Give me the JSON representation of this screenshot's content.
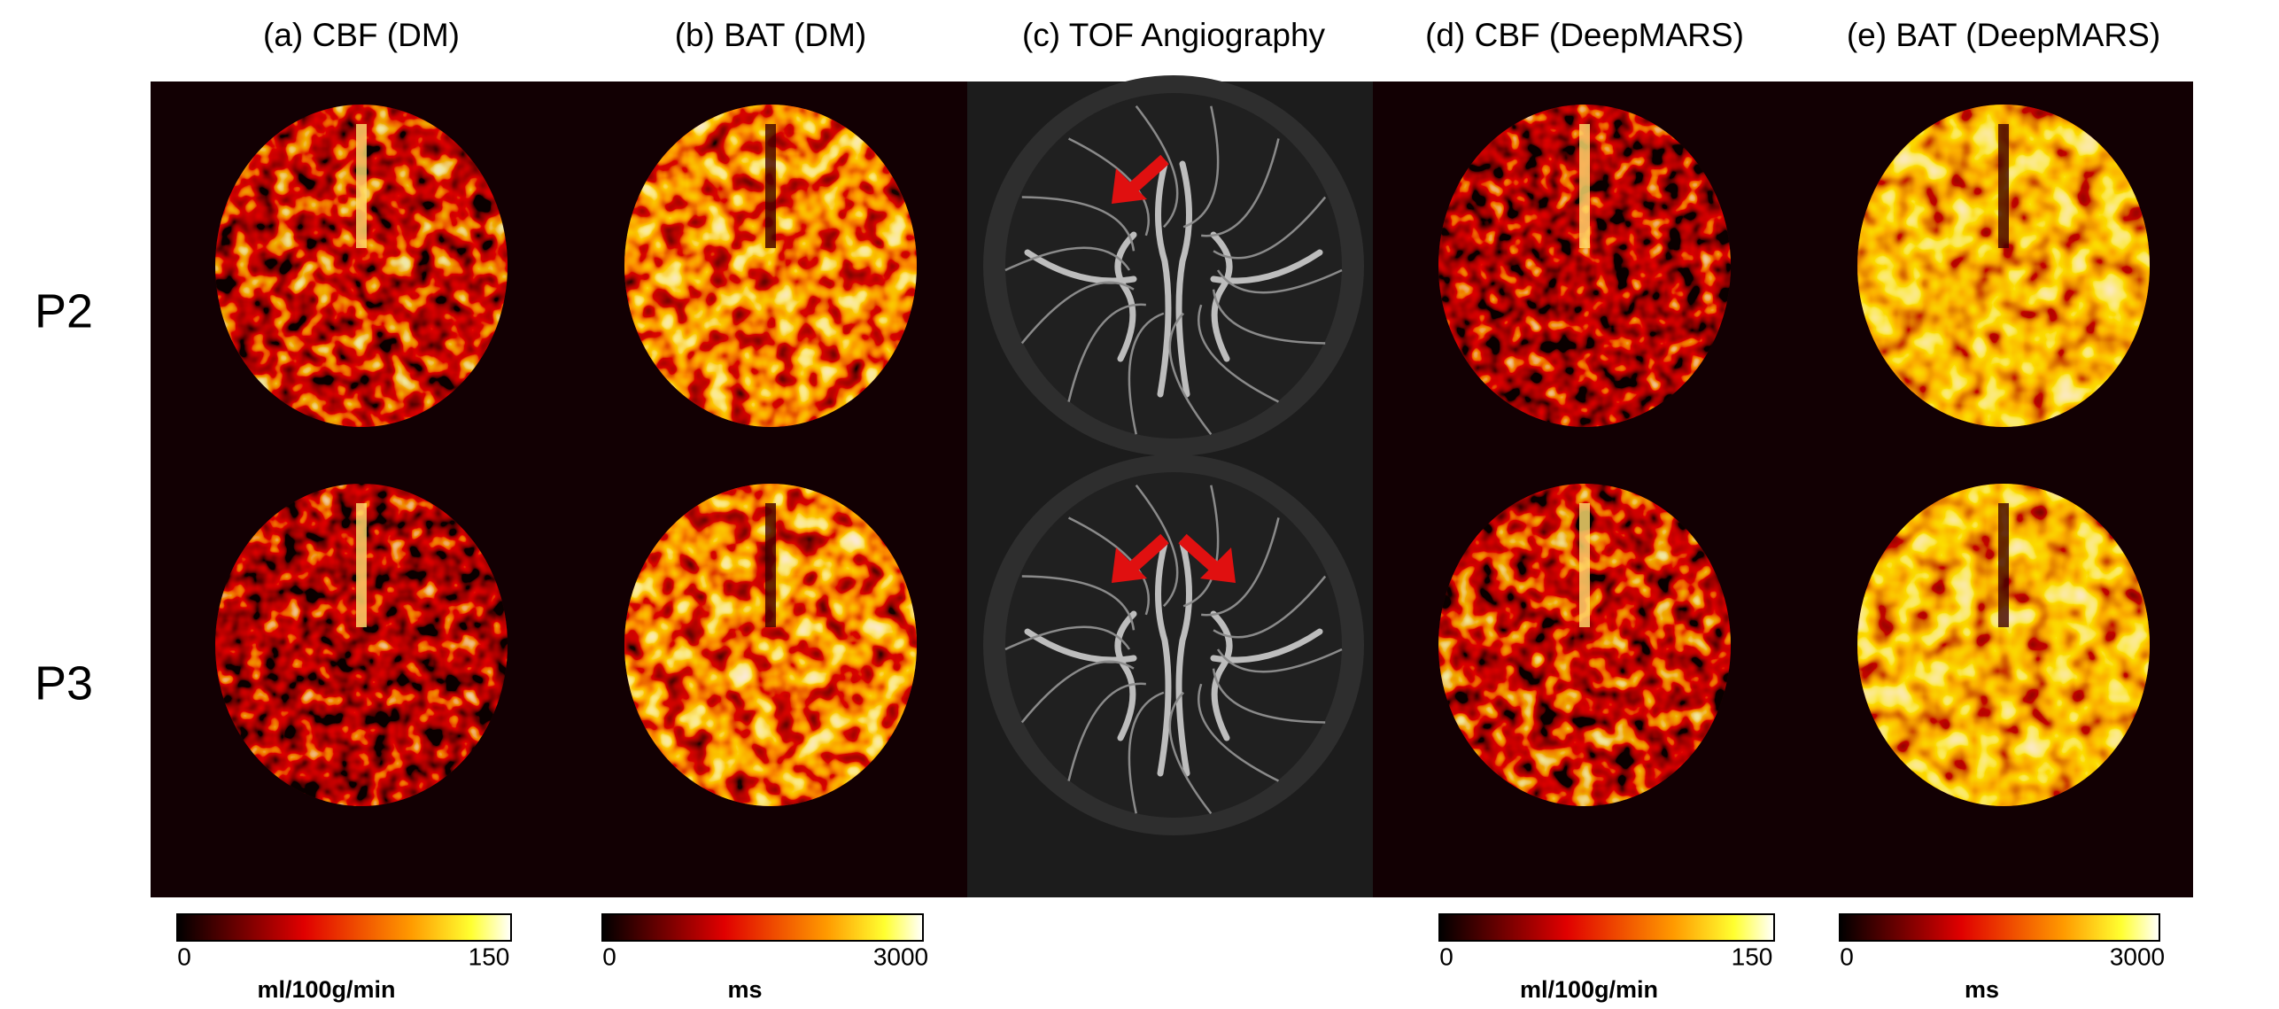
{
  "columns": [
    "(a) CBF (DM)",
    "(b) BAT (DM)",
    "(c) TOF Angiography",
    "(d) CBF (DeepMARS)",
    "(e) BAT (DeepMARS)"
  ],
  "rows": [
    "P2",
    "P3"
  ],
  "colorbars": [
    {
      "min": 0,
      "max": 150,
      "unit": "ml/100g/min"
    },
    {
      "min": 0,
      "max": 3000,
      "unit": "ms"
    },
    {
      "min": 0,
      "max": 150,
      "unit": "ml/100g/min"
    },
    {
      "min": 0,
      "max": 3000,
      "unit": "ms"
    }
  ]
}
